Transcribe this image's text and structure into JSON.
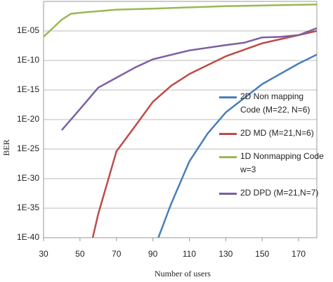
{
  "chart_data": {
    "type": "line",
    "xlabel": "Number of users",
    "ylabel": "BER",
    "xlim": [
      30,
      180
    ],
    "xticks": [
      30,
      50,
      70,
      90,
      110,
      130,
      150,
      170
    ],
    "ylim": [
      1e-40,
      1
    ],
    "log_y": true,
    "grid": true,
    "yticks": [
      {
        "value": 1e-05,
        "label": "1E-05"
      },
      {
        "value": 1e-10,
        "label": "1E-10"
      },
      {
        "value": 1e-15,
        "label": "1E-15"
      },
      {
        "value": 1e-20,
        "label": "1E-20"
      },
      {
        "value": 1e-25,
        "label": "1E-25"
      },
      {
        "value": 1e-30,
        "label": "1E-30"
      },
      {
        "value": 1e-35,
        "label": "1E-35"
      },
      {
        "value": 1e-40,
        "label": "1E-40"
      }
    ],
    "series": [
      {
        "name": "2D Non mapping Code (M=22, N=6)",
        "color": "#4a7ebb",
        "x": [
          93,
          100,
          110,
          120,
          130,
          150,
          170,
          180
        ],
        "values": [
          1e-40,
          5e-35,
          8e-28,
          4e-23,
          1.6e-19,
          1e-14,
          3e-11,
          1e-09
        ]
      },
      {
        "name": "2D MD (M=21,N=6)",
        "color": "#be4b48",
        "x": [
          57,
          60,
          70,
          80,
          90,
          100,
          110,
          130,
          150,
          170,
          180
        ],
        "values": [
          1e-40,
          1e-36,
          4e-26,
          6e-22,
          1e-17,
          5e-15,
          5e-13,
          5e-10,
          8e-08,
          2e-06,
          1e-05
        ]
      },
      {
        "name": "1D Nonmapping Code w=3",
        "color": "#98b954",
        "x": [
          30,
          40,
          45,
          50,
          70,
          90,
          130,
          180
        ],
        "values": [
          1e-06,
          0.0008,
          0.008,
          0.012,
          0.04,
          0.06,
          0.16,
          0.3
        ]
      },
      {
        "name": "2D DPD (M=21,N=7)",
        "color": "#7d60a0",
        "x": [
          40,
          50,
          60,
          70,
          80,
          90,
          110,
          130,
          140,
          150,
          160,
          170,
          180
        ],
        "values": [
          1.6e-22,
          6e-19,
          2.5e-15,
          1.2e-13,
          6e-12,
          1.6e-10,
          5e-09,
          4e-08,
          1e-07,
          8e-07,
          1e-06,
          2e-06,
          3e-05
        ]
      }
    ]
  }
}
